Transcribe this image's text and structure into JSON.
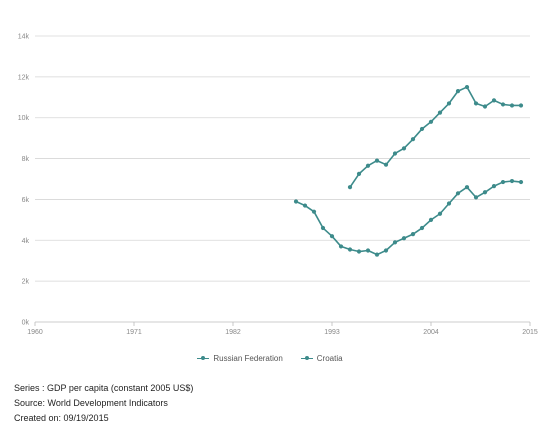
{
  "chart_data": {
    "type": "line",
    "title": "",
    "xlabel": "",
    "ylabel": "",
    "xlim": [
      1960,
      2015
    ],
    "ylim": [
      0,
      14000
    ],
    "x_ticks": [
      1960,
      1971,
      1982,
      1993,
      2004,
      2015
    ],
    "y_ticks": [
      0,
      2000,
      4000,
      6000,
      8000,
      10000,
      12000,
      14000
    ],
    "y_tick_labels": [
      "0k",
      "2k",
      "4k",
      "6k",
      "8k",
      "10k",
      "12k",
      "14k"
    ],
    "grid": "horizontal",
    "legend_position": "bottom-center",
    "series": [
      {
        "name": "Russian Federation",
        "color": "#3d8b8b",
        "x": [
          1989,
          1990,
          1991,
          1992,
          1993,
          1994,
          1995,
          1996,
          1997,
          1998,
          1999,
          2000,
          2001,
          2002,
          2003,
          2004,
          2005,
          2006,
          2007,
          2008,
          2009,
          2010,
          2011,
          2012,
          2013,
          2014
        ],
        "y": [
          5900,
          5700,
          5400,
          4600,
          4200,
          3700,
          3550,
          3450,
          3500,
          3300,
          3500,
          3900,
          4100,
          4300,
          4600,
          5000,
          5300,
          5800,
          6300,
          6600,
          6100,
          6350,
          6650,
          6850,
          6900,
          6850
        ]
      },
      {
        "name": "Croatia",
        "color": "#3d8b8b",
        "x": [
          1995,
          1996,
          1997,
          1998,
          1999,
          2000,
          2001,
          2002,
          2003,
          2004,
          2005,
          2006,
          2007,
          2008,
          2009,
          2010,
          2011,
          2012,
          2013,
          2014
        ],
        "y": [
          6600,
          7250,
          7650,
          7900,
          7700,
          8250,
          8500,
          8950,
          9450,
          9800,
          10250,
          10700,
          11300,
          11500,
          10700,
          10550,
          10850,
          10650,
          10600,
          10600
        ]
      }
    ]
  },
  "footer": {
    "series_line": "Series : GDP per capita (constant 2005 US$)",
    "source_line": "Source: World Development Indicators",
    "created_line": "Created on: 09/19/2015"
  }
}
